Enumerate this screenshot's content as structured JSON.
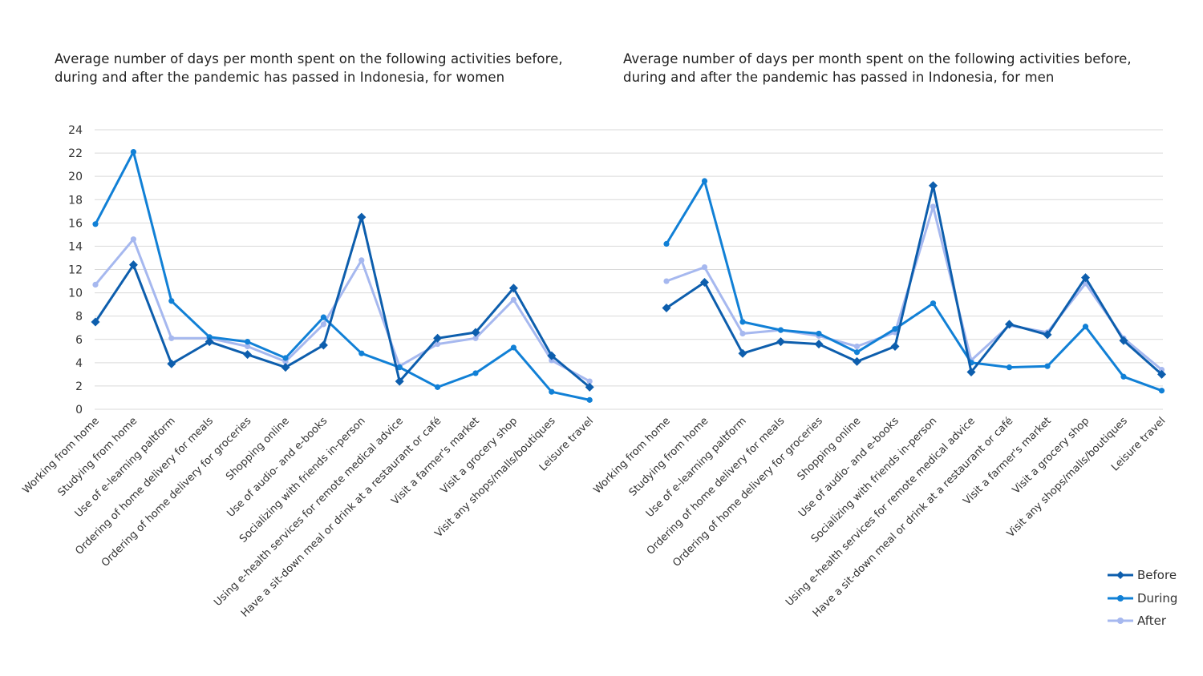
{
  "colors": {
    "before": "#0d5ead",
    "during": "#1180d6",
    "after": "#a6b8ef",
    "grid": "#d9d9d9"
  },
  "chart_data": [
    {
      "type": "line",
      "title": "Average number of days per month spent on the following activities before, during and after the pandemic has passed in Indonesia, for women",
      "title_lines": [
        "Average number of days per month spent on the following activities before,",
        "during and after the pandemic has passed  in Indonesia, for women"
      ],
      "yticks": [
        "0",
        "2",
        "4",
        "6",
        "8",
        "10",
        "12",
        "14",
        "16",
        "18",
        "20",
        "22",
        "24"
      ],
      "ylim": [
        0,
        24
      ],
      "categories": [
        "Working from home",
        "Studying from home",
        "Use of e-learning paltform",
        "Ordering of home delivery for meals",
        "Ordering of home delivery for groceries",
        "Shopping online",
        "Use of audio- and e-books",
        "Socializing with friends in-person",
        "Using e-health services for remote medical advice",
        "Have a sit-down meal or drink at a restaurant or café",
        "Visit a farmer's market",
        "Visit a grocery shop",
        "Visit any shops/malls/boutiques",
        "Leisure travel"
      ],
      "series": [
        {
          "name": "Before",
          "values": [
            7.5,
            12.4,
            3.9,
            5.8,
            4.7,
            3.6,
            5.5,
            16.5,
            2.4,
            6.1,
            6.6,
            10.4,
            4.6,
            1.9
          ]
        },
        {
          "name": "During",
          "values": [
            15.9,
            22.1,
            9.3,
            6.2,
            5.8,
            4.4,
            7.9,
            4.8,
            3.6,
            1.9,
            3.1,
            5.3,
            1.5,
            0.8
          ]
        },
        {
          "name": "After",
          "values": [
            10.7,
            14.6,
            6.1,
            6.1,
            5.4,
            4.1,
            7.3,
            12.8,
            3.7,
            5.6,
            6.1,
            9.4,
            4.2,
            2.4
          ]
        }
      ]
    },
    {
      "type": "line",
      "title": "Average number of days per month spent on the following activities before, during and after the pandemic has passed in Indonesia, for men",
      "title_lines": [
        "Average number of days per month spent on the following activities before,",
        "during and after the pandemic has passed  in Indonesia, for men"
      ],
      "ylim": [
        0,
        24
      ],
      "categories": [
        "Working from home",
        "Studying from home",
        "Use of e-learning paltform",
        "Ordering of home delivery for meals",
        "Ordering of home delivery for groceries",
        "Shopping online",
        "Use of audio- and e-books",
        "Socializing with friends in-person",
        "Using e-health services for remote medical advice",
        "Have a sit-down meal or drink at a restaurant or café",
        "Visit a farmer's market",
        "Visit a grocery shop",
        "Visit any shops/malls/boutiques",
        "Leisure travel"
      ],
      "series": [
        {
          "name": "Before",
          "values": [
            8.7,
            10.9,
            4.8,
            5.8,
            5.6,
            4.1,
            5.4,
            19.2,
            3.2,
            7.3,
            6.4,
            11.3,
            5.9,
            3.0
          ]
        },
        {
          "name": "During",
          "values": [
            14.2,
            19.6,
            7.5,
            6.8,
            6.5,
            4.9,
            6.9,
            9.1,
            4.0,
            3.6,
            3.7,
            7.1,
            2.8,
            1.6
          ]
        },
        {
          "name": "After",
          "values": [
            11.0,
            12.2,
            6.5,
            6.8,
            6.3,
            5.4,
            6.6,
            17.4,
            4.2,
            7.2,
            6.6,
            10.8,
            6.1,
            3.4
          ]
        }
      ]
    }
  ],
  "legend": [
    {
      "label": "Before",
      "key": "before"
    },
    {
      "label": "During",
      "key": "during"
    },
    {
      "label": "After",
      "key": "after"
    }
  ]
}
